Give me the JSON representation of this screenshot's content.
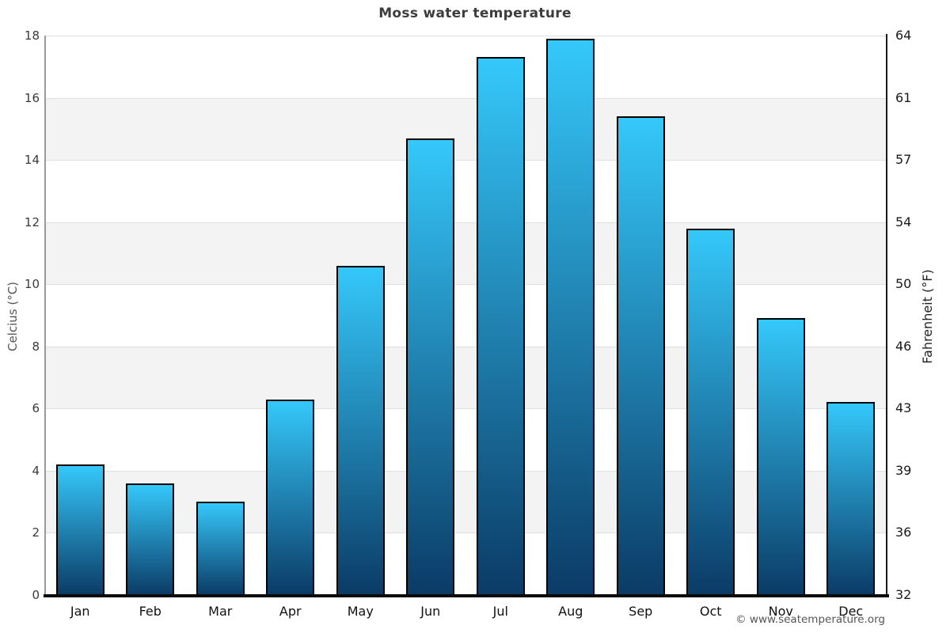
{
  "chart_data": {
    "type": "bar",
    "title": "Moss water temperature",
    "categories": [
      "Jan",
      "Feb",
      "Mar",
      "Apr",
      "May",
      "Jun",
      "Jul",
      "Aug",
      "Sep",
      "Oct",
      "Nov",
      "Dec"
    ],
    "values": [
      4.2,
      3.6,
      3.0,
      6.3,
      10.6,
      14.7,
      17.3,
      17.9,
      15.4,
      11.8,
      8.9,
      6.2
    ],
    "ylabel_left": "Celcius (°C)",
    "ylabel_right": "Fahrenheit (°F)",
    "y_ticks_celsius": [
      0,
      2,
      4,
      6,
      8,
      10,
      12,
      14,
      16,
      18
    ],
    "y_ticks_fahrenheit": [
      32,
      36,
      39,
      43,
      46,
      50,
      54,
      57,
      61,
      64
    ],
    "ylim": [
      0,
      18
    ],
    "legend": "none",
    "grid": "alternating horizontal shaded bands every 2°C with light gridlines",
    "footer": "© www.seatemperature.org",
    "colors": {
      "bar_gradient_top": "#35c8fa",
      "bar_gradient_bottom": "#0b3b66",
      "bar_border": "#000000",
      "band_shade": "#f3f3f3",
      "band_plain": "#ffffff",
      "gridline": "#dfdfdf",
      "title_text": "#3d3d3d",
      "left_axis_text": "#3a3a3a",
      "right_axis_text": "#1a1a1a",
      "footer_text": "#555555"
    }
  }
}
